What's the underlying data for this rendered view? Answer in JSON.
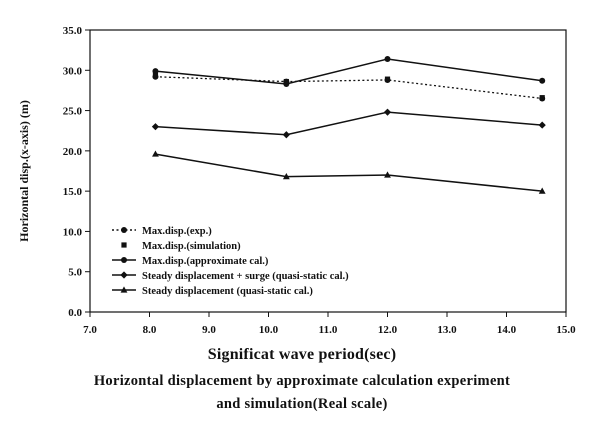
{
  "chart_data": {
    "type": "line",
    "xlabel": "Significat wave period(sec)",
    "ylabel": "Horizontal disp.(x-axis) (m)",
    "xlim": [
      7.0,
      15.0
    ],
    "ylim": [
      0.0,
      35.0
    ],
    "xticks": [
      "7.0",
      "8.0",
      "9.0",
      "10.0",
      "11.0",
      "12.0",
      "13.0",
      "14.0",
      "15.0"
    ],
    "yticks": [
      "0.0",
      "5.0",
      "10.0",
      "15.0",
      "20.0",
      "25.0",
      "30.0",
      "35.0"
    ],
    "grid": false,
    "legend_position": "lower-left",
    "series": [
      {
        "name": "Max.disp.(exp.)",
        "style": "dotted-line-circle",
        "x": [
          8.1,
          10.3,
          12.0,
          14.6
        ],
        "y": [
          29.2,
          28.6,
          28.8,
          26.5
        ]
      },
      {
        "name": "Max.disp.(simulation)",
        "style": "marker-only-square",
        "x": [
          8.1,
          10.3,
          12.0,
          14.6
        ],
        "y": [
          29.4,
          28.6,
          28.9,
          26.6
        ]
      },
      {
        "name": "Max.disp.(approximate cal.)",
        "style": "solid-line-circle",
        "x": [
          8.1,
          10.3,
          12.0,
          14.6
        ],
        "y": [
          29.9,
          28.3,
          31.4,
          28.7
        ]
      },
      {
        "name": "Steady displacement + surge (quasi-static cal.)",
        "style": "solid-line-diamond",
        "x": [
          8.1,
          10.3,
          12.0,
          14.6
        ],
        "y": [
          23.0,
          22.0,
          24.8,
          23.2
        ]
      },
      {
        "name": "Steady displacement (quasi-static cal.)",
        "style": "solid-line-triangle",
        "x": [
          8.1,
          10.3,
          12.0,
          14.6
        ],
        "y": [
          19.6,
          16.8,
          17.0,
          15.0
        ]
      }
    ]
  },
  "caption": {
    "line1": "Horizontal displacement by approximate calculation experiment",
    "line2": "and simulation(Real scale)"
  }
}
